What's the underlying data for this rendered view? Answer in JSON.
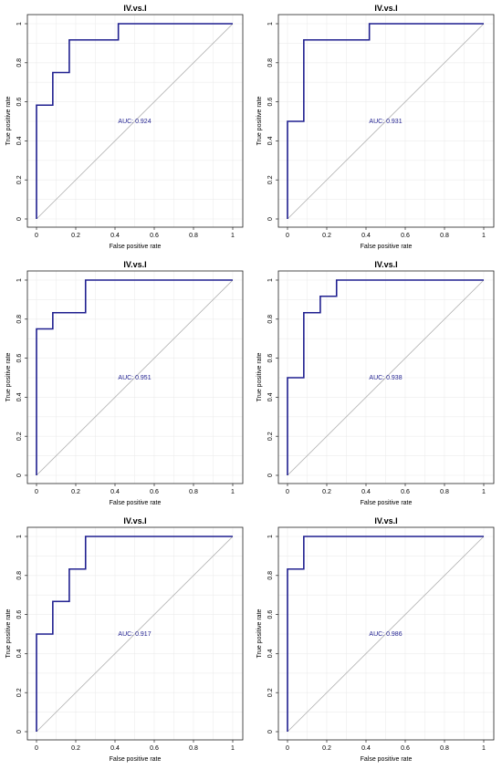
{
  "chart_data": [
    {
      "type": "line",
      "title": "IV.vs.I",
      "xlabel": "False positive rate",
      "ylabel": "True positive rate",
      "xlim": [
        0,
        1
      ],
      "ylim": [
        0,
        1
      ],
      "xticks": [
        "0",
        "0.2",
        "0.4",
        "0.6",
        "0.8",
        "1"
      ],
      "yticks": [
        "0",
        "0.2",
        "0.4",
        "0.6",
        "0.8",
        "1"
      ],
      "annotation": "AUC: 0.924",
      "series": [
        {
          "x": [
            0,
            0,
            0.083,
            0.083,
            0.167,
            0.167,
            0.417,
            0.417,
            1
          ],
          "y": [
            0,
            0.583,
            0.583,
            0.75,
            0.75,
            0.917,
            0.917,
            1,
            1
          ]
        }
      ],
      "diagonal": true,
      "grid": true,
      "colors": {
        "curve": "#1f1f8f",
        "diagonal": "#b0b0b0"
      }
    },
    {
      "type": "line",
      "title": "IV.vs.I",
      "xlabel": "False positive rate",
      "ylabel": "True positive rate",
      "xlim": [
        0,
        1
      ],
      "ylim": [
        0,
        1
      ],
      "xticks": [
        "0",
        "0.2",
        "0.4",
        "0.6",
        "0.8",
        "1"
      ],
      "yticks": [
        "0",
        "0.2",
        "0.4",
        "0.6",
        "0.8",
        "1"
      ],
      "annotation": "AUC: 0.931",
      "series": [
        {
          "x": [
            0,
            0,
            0.083,
            0.083,
            0.417,
            0.417,
            1
          ],
          "y": [
            0,
            0.5,
            0.5,
            0.917,
            0.917,
            1,
            1
          ]
        }
      ],
      "diagonal": true,
      "grid": true,
      "colors": {
        "curve": "#1f1f8f",
        "diagonal": "#b0b0b0"
      }
    },
    {
      "type": "line",
      "title": "IV.vs.I",
      "xlabel": "False positive rate",
      "ylabel": "True positive rate",
      "xlim": [
        0,
        1
      ],
      "ylim": [
        0,
        1
      ],
      "xticks": [
        "0",
        "0.2",
        "0.4",
        "0.6",
        "0.8",
        "1"
      ],
      "yticks": [
        "0",
        "0.2",
        "0.4",
        "0.6",
        "0.8",
        "1"
      ],
      "annotation": "AUC: 0.951",
      "series": [
        {
          "x": [
            0,
            0,
            0.083,
            0.083,
            0.25,
            0.25,
            1
          ],
          "y": [
            0,
            0.75,
            0.75,
            0.833,
            0.833,
            1,
            1
          ]
        }
      ],
      "diagonal": true,
      "grid": true,
      "colors": {
        "curve": "#1f1f8f",
        "diagonal": "#b0b0b0"
      }
    },
    {
      "type": "line",
      "title": "IV.vs.I",
      "xlabel": "False positive rate",
      "ylabel": "True positive rate",
      "xlim": [
        0,
        1
      ],
      "ylim": [
        0,
        1
      ],
      "xticks": [
        "0",
        "0.2",
        "0.4",
        "0.6",
        "0.8",
        "1"
      ],
      "yticks": [
        "0",
        "0.2",
        "0.4",
        "0.6",
        "0.8",
        "1"
      ],
      "annotation": "AUC: 0.938",
      "series": [
        {
          "x": [
            0,
            0,
            0.083,
            0.083,
            0.167,
            0.167,
            0.25,
            0.25,
            1
          ],
          "y": [
            0,
            0.5,
            0.5,
            0.833,
            0.833,
            0.917,
            0.917,
            1,
            1
          ]
        }
      ],
      "diagonal": true,
      "grid": true,
      "colors": {
        "curve": "#1f1f8f",
        "diagonal": "#b0b0b0"
      }
    },
    {
      "type": "line",
      "title": "IV.vs.I",
      "xlabel": "False positive rate",
      "ylabel": "True positive rate",
      "xlim": [
        0,
        1
      ],
      "ylim": [
        0,
        1
      ],
      "xticks": [
        "0",
        "0.2",
        "0.4",
        "0.6",
        "0.8",
        "1"
      ],
      "yticks": [
        "0",
        "0.2",
        "0.4",
        "0.6",
        "0.8",
        "1"
      ],
      "annotation": "AUC: 0.917",
      "series": [
        {
          "x": [
            0,
            0,
            0.083,
            0.083,
            0.167,
            0.167,
            0.25,
            0.25,
            1
          ],
          "y": [
            0,
            0.5,
            0.5,
            0.667,
            0.667,
            0.833,
            0.833,
            1,
            1
          ]
        }
      ],
      "diagonal": true,
      "grid": true,
      "colors": {
        "curve": "#1f1f8f",
        "diagonal": "#b0b0b0"
      }
    },
    {
      "type": "line",
      "title": "IV.vs.I",
      "xlabel": "False positive rate",
      "ylabel": "True positive rate",
      "xlim": [
        0,
        1
      ],
      "ylim": [
        0,
        1
      ],
      "xticks": [
        "0",
        "0.2",
        "0.4",
        "0.6",
        "0.8",
        "1"
      ],
      "yticks": [
        "0",
        "0.2",
        "0.4",
        "0.6",
        "0.8",
        "1"
      ],
      "annotation": "AUC: 0.986",
      "series": [
        {
          "x": [
            0,
            0,
            0.083,
            0.083,
            1
          ],
          "y": [
            0,
            0.833,
            0.833,
            1,
            1
          ]
        }
      ],
      "diagonal": true,
      "grid": true,
      "colors": {
        "curve": "#1f1f8f",
        "diagonal": "#b0b0b0"
      }
    }
  ]
}
